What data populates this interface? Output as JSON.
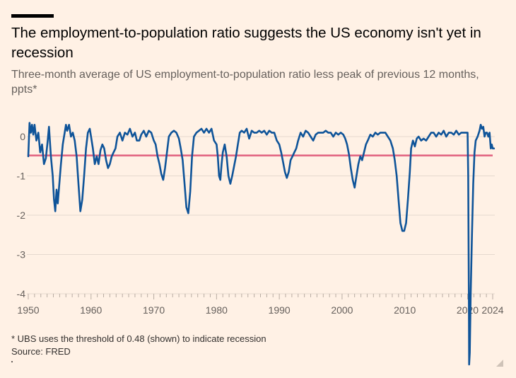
{
  "title": "The employment-to-population ratio suggests the US economy isn't yet in recession",
  "subtitle": "Three-month average of US employment-to-population ratio less peak of previous 12 months, ppts*",
  "footnote": "* UBS uses the threshold of 0.48 (shown) to indicate recession",
  "source": "Source: FRED",
  "chart_data": {
    "type": "line",
    "title": "The employment-to-population ratio suggests the US economy isn't yet in recession",
    "xlim": [
      1950,
      2024
    ],
    "ylim": [
      -4,
      0.4
    ],
    "y_ticks": [
      "0",
      "-1",
      "-2",
      "-3",
      "-4"
    ],
    "y_tick_values": [
      0,
      -1,
      -2,
      -3,
      -4
    ],
    "x_ticks": [
      "1950",
      "1960",
      "1970",
      "1980",
      "1990",
      "2000",
      "2010",
      "2020",
      "2024"
    ],
    "x_tick_values": [
      1950,
      1960,
      1970,
      1980,
      1990,
      2000,
      2010,
      2020,
      2024
    ],
    "grid": "horizontal",
    "threshold": {
      "value": -0.48,
      "color": "#e0607e"
    },
    "series": [
      {
        "color": "#0f5499",
        "points": [
          [
            1950.0,
            -0.5
          ],
          [
            1950.2,
            0.35
          ],
          [
            1950.4,
            0.1
          ],
          [
            1950.6,
            0.3
          ],
          [
            1950.8,
            0.05
          ],
          [
            1951.0,
            0.3
          ],
          [
            1951.3,
            -0.1
          ],
          [
            1951.6,
            0.1
          ],
          [
            1951.9,
            -0.4
          ],
          [
            1952.2,
            -0.2
          ],
          [
            1952.5,
            -0.7
          ],
          [
            1952.8,
            -0.55
          ],
          [
            1953.1,
            -0.1
          ],
          [
            1953.3,
            0.25
          ],
          [
            1953.6,
            -0.5
          ],
          [
            1953.9,
            -1.0
          ],
          [
            1954.1,
            -1.6
          ],
          [
            1954.3,
            -1.9
          ],
          [
            1954.5,
            -1.35
          ],
          [
            1954.7,
            -1.7
          ],
          [
            1954.9,
            -1.3
          ],
          [
            1955.2,
            -0.7
          ],
          [
            1955.5,
            -0.2
          ],
          [
            1955.8,
            0.1
          ],
          [
            1956.0,
            0.3
          ],
          [
            1956.2,
            0.15
          ],
          [
            1956.5,
            0.3
          ],
          [
            1956.8,
            0.0
          ],
          [
            1957.1,
            0.1
          ],
          [
            1957.4,
            -0.1
          ],
          [
            1957.7,
            -0.5
          ],
          [
            1958.0,
            -1.2
          ],
          [
            1958.3,
            -1.9
          ],
          [
            1958.6,
            -1.6
          ],
          [
            1958.9,
            -1.0
          ],
          [
            1959.2,
            -0.3
          ],
          [
            1959.5,
            0.1
          ],
          [
            1959.8,
            0.2
          ],
          [
            1960.0,
            0.0
          ],
          [
            1960.3,
            -0.3
          ],
          [
            1960.6,
            -0.7
          ],
          [
            1960.9,
            -0.5
          ],
          [
            1961.2,
            -0.7
          ],
          [
            1961.5,
            -0.35
          ],
          [
            1961.8,
            -0.2
          ],
          [
            1962.1,
            -0.3
          ],
          [
            1962.4,
            -0.6
          ],
          [
            1962.7,
            -0.8
          ],
          [
            1963.0,
            -0.7
          ],
          [
            1963.3,
            -0.5
          ],
          [
            1963.6,
            -0.4
          ],
          [
            1963.9,
            -0.3
          ],
          [
            1964.2,
            0.0
          ],
          [
            1964.6,
            0.1
          ],
          [
            1965.0,
            -0.1
          ],
          [
            1965.4,
            0.1
          ],
          [
            1965.8,
            0.05
          ],
          [
            1966.2,
            0.2
          ],
          [
            1966.6,
            0.0
          ],
          [
            1967.0,
            0.1
          ],
          [
            1967.3,
            -0.1
          ],
          [
            1967.7,
            -0.1
          ],
          [
            1968.0,
            0.05
          ],
          [
            1968.4,
            0.15
          ],
          [
            1968.8,
            0.0
          ],
          [
            1969.2,
            0.15
          ],
          [
            1969.6,
            0.1
          ],
          [
            1970.0,
            -0.1
          ],
          [
            1970.3,
            -0.2
          ],
          [
            1970.6,
            -0.5
          ],
          [
            1970.9,
            -0.7
          ],
          [
            1971.2,
            -0.95
          ],
          [
            1971.5,
            -1.1
          ],
          [
            1971.8,
            -0.8
          ],
          [
            1972.1,
            -0.4
          ],
          [
            1972.4,
            0.0
          ],
          [
            1972.8,
            0.1
          ],
          [
            1973.2,
            0.15
          ],
          [
            1973.6,
            0.1
          ],
          [
            1974.0,
            -0.05
          ],
          [
            1974.3,
            -0.3
          ],
          [
            1974.6,
            -0.6
          ],
          [
            1974.9,
            -1.2
          ],
          [
            1975.2,
            -1.8
          ],
          [
            1975.5,
            -1.95
          ],
          [
            1975.8,
            -1.4
          ],
          [
            1976.1,
            -0.5
          ],
          [
            1976.4,
            0.0
          ],
          [
            1976.8,
            0.1
          ],
          [
            1977.2,
            0.15
          ],
          [
            1977.6,
            0.2
          ],
          [
            1978.0,
            0.1
          ],
          [
            1978.4,
            0.2
          ],
          [
            1978.8,
            0.1
          ],
          [
            1979.2,
            0.2
          ],
          [
            1979.6,
            -0.1
          ],
          [
            1980.0,
            -0.2
          ],
          [
            1980.2,
            -0.5
          ],
          [
            1980.4,
            -1.0
          ],
          [
            1980.6,
            -1.1
          ],
          [
            1980.8,
            -0.7
          ],
          [
            1981.0,
            -0.4
          ],
          [
            1981.3,
            -0.2
          ],
          [
            1981.6,
            -0.5
          ],
          [
            1981.9,
            -1.0
          ],
          [
            1982.2,
            -1.2
          ],
          [
            1982.5,
            -1.0
          ],
          [
            1982.8,
            -0.75
          ],
          [
            1983.1,
            -0.5
          ],
          [
            1983.4,
            -0.2
          ],
          [
            1983.7,
            0.1
          ],
          [
            1984.0,
            0.15
          ],
          [
            1984.4,
            0.1
          ],
          [
            1984.8,
            0.2
          ],
          [
            1985.2,
            -0.05
          ],
          [
            1985.6,
            0.15
          ],
          [
            1986.0,
            0.1
          ],
          [
            1986.4,
            0.1
          ],
          [
            1986.8,
            0.15
          ],
          [
            1987.2,
            0.1
          ],
          [
            1987.6,
            0.15
          ],
          [
            1988.0,
            0.05
          ],
          [
            1988.4,
            0.15
          ],
          [
            1988.8,
            0.1
          ],
          [
            1989.2,
            0.1
          ],
          [
            1989.6,
            -0.1
          ],
          [
            1990.0,
            -0.2
          ],
          [
            1990.3,
            -0.4
          ],
          [
            1990.6,
            -0.65
          ],
          [
            1990.9,
            -0.9
          ],
          [
            1991.2,
            -1.05
          ],
          [
            1991.5,
            -0.9
          ],
          [
            1991.8,
            -0.6
          ],
          [
            1992.1,
            -0.5
          ],
          [
            1992.4,
            -0.4
          ],
          [
            1992.7,
            -0.3
          ],
          [
            1993.0,
            -0.1
          ],
          [
            1993.4,
            0.1
          ],
          [
            1993.8,
            0.0
          ],
          [
            1994.2,
            0.15
          ],
          [
            1994.6,
            0.1
          ],
          [
            1995.0,
            0.0
          ],
          [
            1995.4,
            -0.1
          ],
          [
            1995.8,
            0.05
          ],
          [
            1996.2,
            0.1
          ],
          [
            1996.6,
            0.1
          ],
          [
            1997.0,
            0.1
          ],
          [
            1997.4,
            0.15
          ],
          [
            1997.8,
            0.1
          ],
          [
            1998.2,
            0.1
          ],
          [
            1998.6,
            0.0
          ],
          [
            1999.0,
            0.1
          ],
          [
            1999.4,
            0.05
          ],
          [
            1999.8,
            0.1
          ],
          [
            2000.2,
            0.05
          ],
          [
            2000.5,
            -0.05
          ],
          [
            2000.8,
            -0.2
          ],
          [
            2001.1,
            -0.45
          ],
          [
            2001.4,
            -0.8
          ],
          [
            2001.7,
            -1.1
          ],
          [
            2002.0,
            -1.3
          ],
          [
            2002.3,
            -1.0
          ],
          [
            2002.6,
            -0.7
          ],
          [
            2002.9,
            -0.5
          ],
          [
            2003.2,
            -0.6
          ],
          [
            2003.5,
            -0.4
          ],
          [
            2003.8,
            -0.2
          ],
          [
            2004.1,
            -0.1
          ],
          [
            2004.5,
            0.05
          ],
          [
            2004.9,
            0.0
          ],
          [
            2005.3,
            0.1
          ],
          [
            2005.7,
            0.05
          ],
          [
            2006.1,
            0.1
          ],
          [
            2006.5,
            0.1
          ],
          [
            2006.9,
            0.1
          ],
          [
            2007.3,
            0.0
          ],
          [
            2007.7,
            -0.1
          ],
          [
            2008.1,
            -0.3
          ],
          [
            2008.4,
            -0.6
          ],
          [
            2008.7,
            -1.0
          ],
          [
            2009.0,
            -1.6
          ],
          [
            2009.3,
            -2.2
          ],
          [
            2009.6,
            -2.4
          ],
          [
            2009.9,
            -2.4
          ],
          [
            2010.2,
            -2.2
          ],
          [
            2010.5,
            -1.6
          ],
          [
            2010.8,
            -0.9
          ],
          [
            2011.0,
            -0.3
          ],
          [
            2011.3,
            -0.1
          ],
          [
            2011.6,
            -0.25
          ],
          [
            2011.9,
            -0.05
          ],
          [
            2012.2,
            0.0
          ],
          [
            2012.6,
            -0.1
          ],
          [
            2013.0,
            -0.05
          ],
          [
            2013.4,
            -0.1
          ],
          [
            2013.8,
            0.0
          ],
          [
            2014.2,
            0.1
          ],
          [
            2014.6,
            0.1
          ],
          [
            2015.0,
            0.0
          ],
          [
            2015.4,
            0.1
          ],
          [
            2015.8,
            0.05
          ],
          [
            2016.2,
            0.15
          ],
          [
            2016.6,
            0.0
          ],
          [
            2017.0,
            0.1
          ],
          [
            2017.4,
            0.1
          ],
          [
            2017.8,
            0.05
          ],
          [
            2018.2,
            0.15
          ],
          [
            2018.6,
            0.05
          ],
          [
            2019.0,
            0.1
          ],
          [
            2019.4,
            0.1
          ],
          [
            2019.8,
            0.1
          ],
          [
            2020.0,
            0.1
          ],
          [
            2020.1,
            -1.0
          ],
          [
            2020.2,
            -4.0
          ],
          [
            2020.25,
            -5.8
          ],
          [
            2020.35,
            -5.5
          ],
          [
            2020.5,
            -4.0
          ],
          [
            2020.7,
            -2.5
          ],
          [
            2020.9,
            -1.2
          ],
          [
            2021.1,
            -0.4
          ],
          [
            2021.3,
            -0.1
          ],
          [
            2021.6,
            0.0
          ],
          [
            2021.9,
            0.15
          ],
          [
            2022.1,
            0.3
          ],
          [
            2022.3,
            0.2
          ],
          [
            2022.5,
            0.25
          ],
          [
            2022.7,
            0.0
          ],
          [
            2022.9,
            0.1
          ],
          [
            2023.1,
            0.1
          ],
          [
            2023.3,
            0.0
          ],
          [
            2023.5,
            0.1
          ],
          [
            2023.7,
            -0.3
          ],
          [
            2023.85,
            -0.2
          ],
          [
            2024.0,
            -0.3
          ],
          [
            2024.2,
            -0.3
          ]
        ]
      }
    ]
  }
}
